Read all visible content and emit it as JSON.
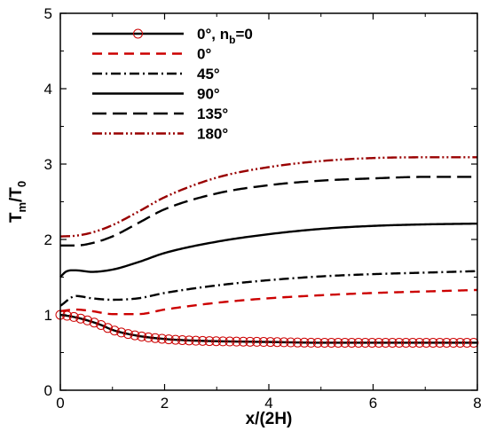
{
  "chart_data": {
    "type": "line",
    "xlabel": "x/(2H)",
    "ylabel": {
      "main": "T",
      "sub1": "m",
      "mid": "/T",
      "sub2": "0"
    },
    "xlim": [
      0,
      8
    ],
    "ylim": [
      0,
      5
    ],
    "xticks": [
      "0",
      "2",
      "4",
      "6",
      "8"
    ],
    "yticks": [
      "0",
      "1",
      "2",
      "3",
      "4",
      "5"
    ],
    "grid": false,
    "legend_position": "top-left",
    "series": [
      {
        "name": "0°, n_b=0",
        "legend": {
          "main": "0°, n",
          "sub": "b",
          "tail": "=0"
        },
        "color": "#000000",
        "dash": "solid",
        "markers": "circle-open",
        "marker_color": "#cc0000",
        "x": [
          0,
          0.2,
          0.5,
          0.8,
          1.0,
          1.5,
          2.0,
          2.5,
          3.0,
          4.0,
          5.0,
          6.0,
          7.0,
          8.0
        ],
        "y": [
          1.0,
          0.98,
          0.93,
          0.86,
          0.8,
          0.72,
          0.68,
          0.66,
          0.65,
          0.64,
          0.63,
          0.63,
          0.63,
          0.63
        ]
      },
      {
        "name": "0°",
        "legend": {
          "main": "0°"
        },
        "color": "#cc0000",
        "dash": "dash",
        "x": [
          0,
          0.3,
          0.6,
          1.0,
          1.5,
          2.0,
          3.0,
          4.0,
          5.0,
          6.0,
          7.0,
          8.0
        ],
        "y": [
          1.05,
          1.07,
          1.05,
          1.01,
          1.01,
          1.07,
          1.16,
          1.22,
          1.26,
          1.29,
          1.31,
          1.33
        ]
      },
      {
        "name": "45°",
        "legend": {
          "main": "45°"
        },
        "color": "#000000",
        "dash": "dashdot",
        "x": [
          0,
          0.3,
          0.6,
          1.0,
          1.5,
          2.0,
          3.0,
          4.0,
          5.0,
          6.0,
          7.0,
          8.0
        ],
        "y": [
          1.12,
          1.25,
          1.22,
          1.2,
          1.22,
          1.29,
          1.39,
          1.46,
          1.51,
          1.54,
          1.56,
          1.58
        ]
      },
      {
        "name": "90°",
        "legend": {
          "main": "90°"
        },
        "color": "#000000",
        "dash": "solid",
        "x": [
          0,
          0.1,
          0.3,
          0.6,
          1.0,
          1.5,
          2.0,
          3.0,
          4.0,
          5.0,
          6.0,
          7.0,
          8.0
        ],
        "y": [
          1.5,
          1.57,
          1.59,
          1.57,
          1.6,
          1.7,
          1.82,
          1.97,
          2.07,
          2.14,
          2.18,
          2.2,
          2.21
        ]
      },
      {
        "name": "135°",
        "legend": {
          "main": "135°"
        },
        "color": "#000000",
        "dash": "longdash",
        "x": [
          0,
          0.3,
          0.6,
          1.0,
          1.5,
          2.0,
          3.0,
          4.0,
          5.0,
          6.0,
          7.0,
          8.0
        ],
        "y": [
          1.92,
          1.92,
          1.95,
          2.04,
          2.22,
          2.4,
          2.61,
          2.72,
          2.78,
          2.81,
          2.83,
          2.83
        ]
      },
      {
        "name": "180°",
        "legend": {
          "main": "180°"
        },
        "color": "#990000",
        "dash": "dashdotdot",
        "x": [
          0,
          0.3,
          0.6,
          1.0,
          1.5,
          2.0,
          3.0,
          4.0,
          5.0,
          6.0,
          7.0,
          8.0
        ],
        "y": [
          2.04,
          2.05,
          2.09,
          2.19,
          2.37,
          2.56,
          2.82,
          2.96,
          3.04,
          3.08,
          3.09,
          3.09
        ]
      }
    ]
  }
}
